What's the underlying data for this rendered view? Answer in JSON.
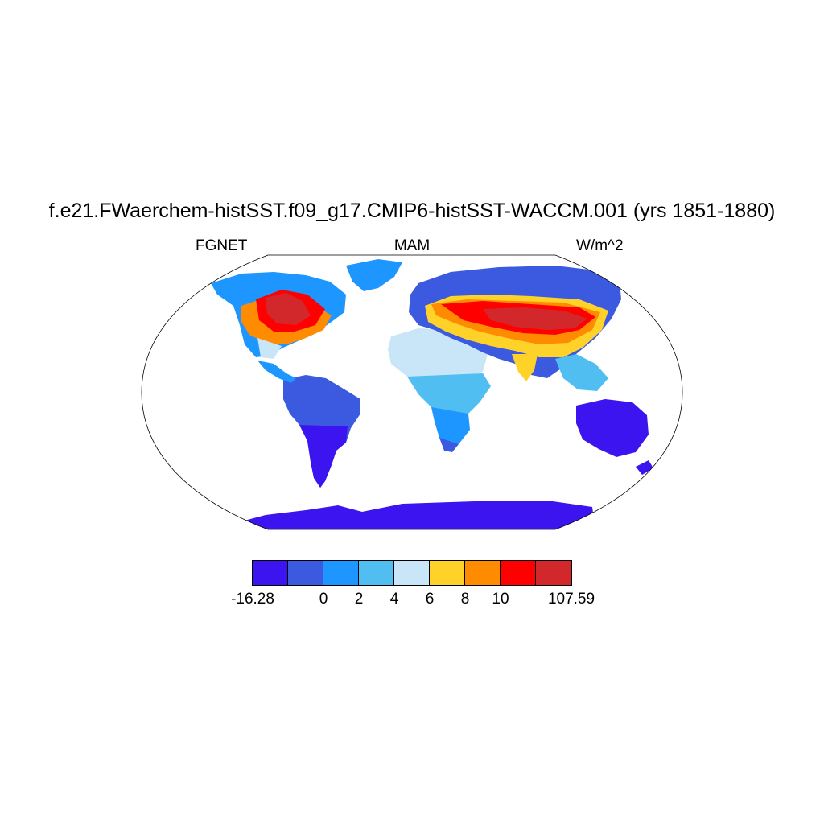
{
  "title": "f.e21.FWaerchem-histSST.f09_g17.CMIP6-histSST-WACCM.001 (yrs 1851-1880)",
  "left_label": "FGNET",
  "center_label": "MAM",
  "right_label": "W/m^2",
  "map": {
    "projection": "robinson",
    "field": "FGNET",
    "season": "MAM",
    "units": "W/m^2"
  },
  "colorbar": {
    "colors": [
      "#3c14f0",
      "#3c5ae0",
      "#1e96ff",
      "#50bef0",
      "#c8e6f8",
      "#ffd22a",
      "#ff8c00",
      "#ff0000",
      "#d2282c"
    ],
    "labels": [
      "-16.28",
      "0",
      "2",
      "4",
      "6",
      "8",
      "10",
      "107.59"
    ],
    "label_boundaries": [
      0,
      2,
      3,
      4,
      5,
      6,
      7,
      9
    ]
  }
}
